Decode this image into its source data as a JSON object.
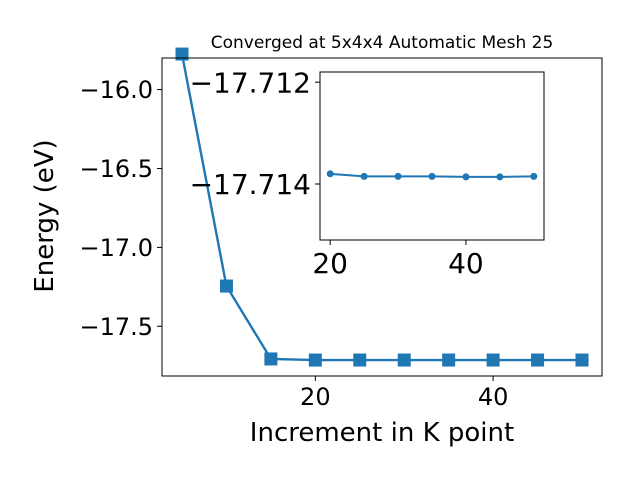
{
  "chart_data": [
    {
      "type": "line",
      "title": "Converged at 5x4x4 Automatic Mesh 25",
      "xlabel": "Increment in K point",
      "ylabel": "Energy (eV)",
      "x": [
        5,
        10,
        15,
        20,
        25,
        30,
        35,
        40,
        45,
        50
      ],
      "xlim": [
        2.75,
        52.25
      ],
      "ylim": [
        -17.815,
        -15.8
      ],
      "xticks": [
        20,
        40
      ],
      "yticks": [
        -17.5,
        -17.0,
        -16.5,
        -16.0
      ],
      "xtick_labels": [
        "20",
        "40"
      ],
      "ytick_labels": [
        "−17.5",
        "−17.0",
        "−16.5",
        "−16.0"
      ],
      "series": [
        {
          "marker": "square",
          "color": "#1f77b4",
          "values": [
            -15.775,
            -17.245,
            -17.707,
            -17.714,
            -17.7138,
            -17.7138,
            -17.7138,
            -17.7138,
            -17.7138,
            -17.7138
          ]
        }
      ],
      "grid": false
    },
    {
      "type": "line",
      "inset": true,
      "x": [
        20,
        25,
        30,
        35,
        40,
        45,
        50
      ],
      "xlim": [
        18.5,
        51.5
      ],
      "ylim": [
        -17.7151,
        -17.7118
      ],
      "xticks": [
        20,
        40
      ],
      "yticks": [
        -17.714,
        -17.712
      ],
      "xtick_labels": [
        "20",
        "40"
      ],
      "ytick_labels": [
        "−17.714",
        "−17.712"
      ],
      "series": [
        {
          "marker": "circle",
          "color": "#1f77b4",
          "values": [
            -17.7138,
            -17.71385,
            -17.71385,
            -17.71385,
            -17.71386,
            -17.71386,
            -17.71385
          ]
        }
      ],
      "grid": false
    }
  ]
}
